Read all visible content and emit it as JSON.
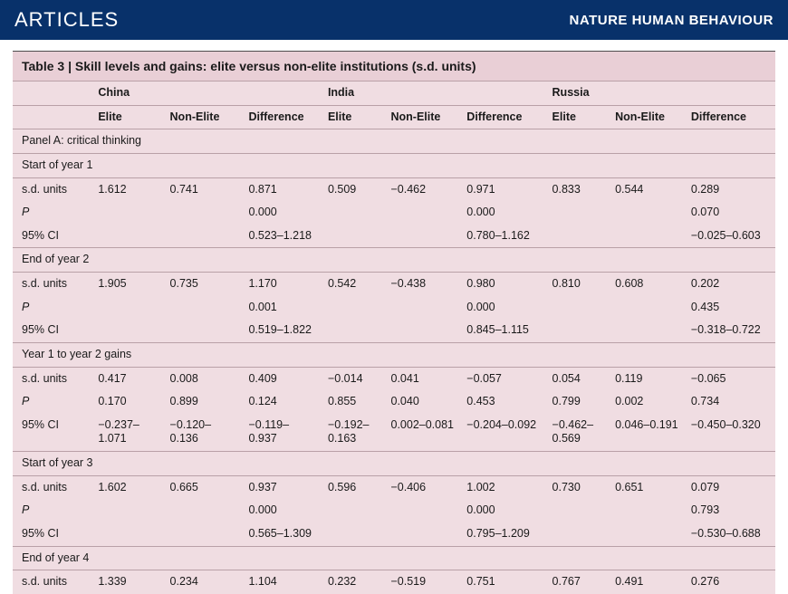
{
  "banner": {
    "left": "ARTICLES",
    "right": "NATURE HUMAN BEHAVIOUR"
  },
  "colors": {
    "banner_bg": "#08316a",
    "table_bg": "#f0dde2",
    "title_bg": "#e9cfd6",
    "rule": "#b9a0a7"
  },
  "table": {
    "title": "Table 3 | Skill levels and gains: elite versus non-elite institutions (s.d. units)",
    "countries": [
      "China",
      "India",
      "Russia"
    ],
    "subcols": [
      "Elite",
      "Non-Elite",
      "Difference"
    ],
    "panel_a": "Panel A: critical thinking",
    "labels": {
      "start_y1": "Start of year 1",
      "end_y2": "End of year 2",
      "y1_y2_gains": "Year 1 to year 2 gains",
      "start_y3": "Start of year 3",
      "end_y4": "End of year 4",
      "sd": "s.d. units",
      "p": "P",
      "ci": "95% CI"
    },
    "data": {
      "start_y1": {
        "sd": [
          "1.612",
          "0.741",
          "0.871",
          "0.509",
          "−0.462",
          "0.971",
          "0.833",
          "0.544",
          "0.289"
        ],
        "p": [
          "",
          "",
          "0.000",
          "",
          "",
          "0.000",
          "",
          "",
          "0.070"
        ],
        "ci": [
          "",
          "",
          "0.523–1.218",
          "",
          "",
          "0.780–1.162",
          "",
          "",
          "−0.025–0.603"
        ]
      },
      "end_y2": {
        "sd": [
          "1.905",
          "0.735",
          "1.170",
          "0.542",
          "−0.438",
          "0.980",
          "0.810",
          "0.608",
          "0.202"
        ],
        "p": [
          "",
          "",
          "0.001",
          "",
          "",
          "0.000",
          "",
          "",
          "0.435"
        ],
        "ci": [
          "",
          "",
          "0.519–1.822",
          "",
          "",
          "0.845–1.115",
          "",
          "",
          "−0.318–0.722"
        ]
      },
      "y1_y2_gains": {
        "sd": [
          "0.417",
          "0.008",
          "0.409",
          "−0.014",
          "0.041",
          "−0.057",
          "0.054",
          "0.119",
          "−0.065"
        ],
        "p": [
          "0.170",
          "0.899",
          "0.124",
          "0.855",
          "0.040",
          "0.453",
          "0.799",
          "0.002",
          "0.734"
        ],
        "ci": [
          "−0.237–1.071",
          "−0.120–0.136",
          "−0.119–0.937",
          "−0.192–0.163",
          "0.002–0.081",
          "−0.204–0.092",
          "−0.462–0.569",
          "0.046–0.191",
          "−0.450–0.320"
        ]
      },
      "start_y3": {
        "sd": [
          "1.602",
          "0.665",
          "0.937",
          "0.596",
          "−0.406",
          "1.002",
          "0.730",
          "0.651",
          "0.079"
        ],
        "p": [
          "",
          "",
          "0.000",
          "",
          "",
          "0.000",
          "",
          "",
          "0.793"
        ],
        "ci": [
          "",
          "",
          "0.565–1.309",
          "",
          "",
          "0.795–1.209",
          "",
          "",
          "−0.530–0.688"
        ]
      },
      "end_y4": {
        "sd": [
          "1.339",
          "0.234",
          "1.104",
          "0.232",
          "−0.519",
          "0.751",
          "0.767",
          "0.491",
          "0.276"
        ]
      }
    }
  }
}
